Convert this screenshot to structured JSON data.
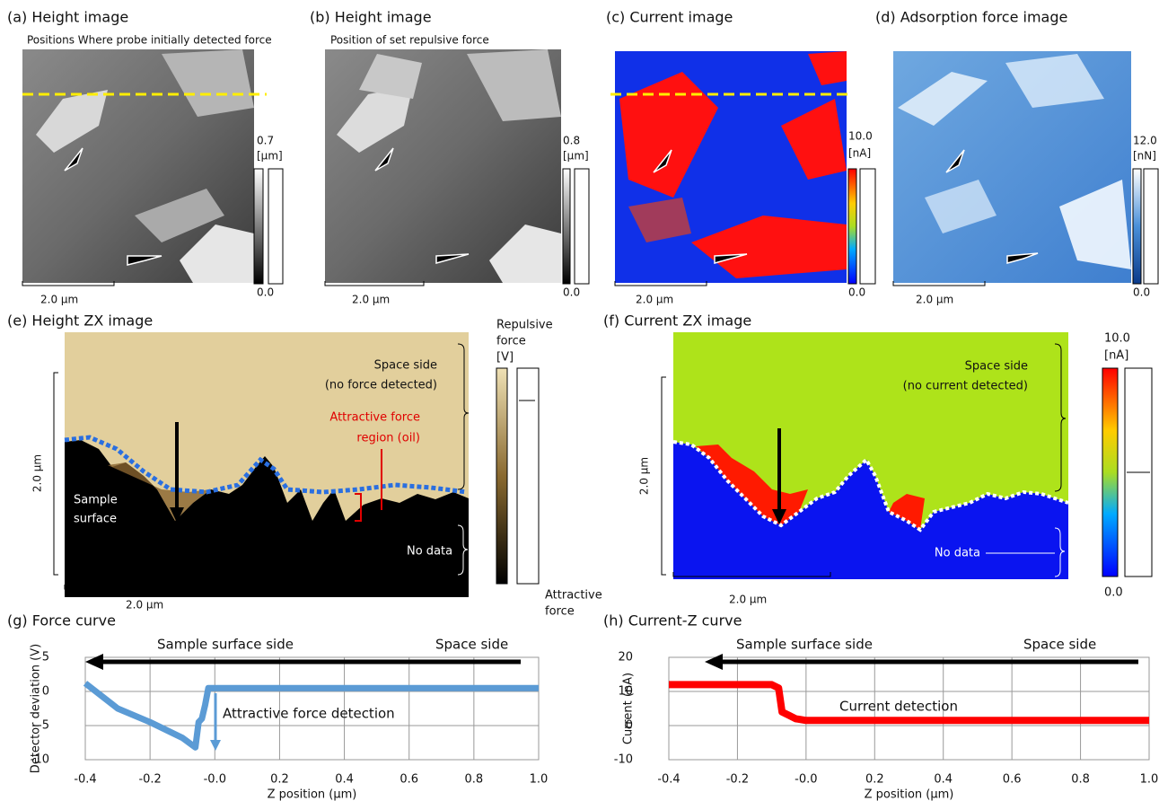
{
  "panels": [
    {
      "label": "(a) Height image",
      "subtitle": "Positions Where probe initially detected force",
      "scale_max": "0.7",
      "unit": "[µm]",
      "scale_min": "0.0",
      "scale_bar": "2.0 µm"
    },
    {
      "label": "(b) Height image",
      "subtitle": "Position of set repulsive force",
      "scale_max": "0.8",
      "unit": "[µm]",
      "scale_min": "0.0",
      "scale_bar": "2.0 µm"
    },
    {
      "label": "(c) Current image",
      "scale_max": "10.0",
      "unit": "[nA]",
      "scale_min": "0.0",
      "scale_bar": "2.0 µm"
    },
    {
      "label": "(d) Adsorption force image",
      "scale_max": "12.0",
      "unit": "[nN]",
      "scale_min": "0.0",
      "scale_bar": "2.0 µm"
    },
    {
      "label": "(e) Height ZX image",
      "scale_top": [
        "Repulsive",
        "force",
        "[V]"
      ],
      "scale_bottom": [
        "Attractive",
        "force"
      ],
      "scale_bar": "2.0 µm",
      "scale_bar_vertical": "2.0 µm",
      "annotations": [
        "Space side",
        "(no force detected)",
        "Attractive force",
        "region (oil)",
        "Sample",
        "surface",
        "No data"
      ]
    },
    {
      "label": "(f) Current ZX image",
      "scale_max": "10.0",
      "unit": "[nA]",
      "scale_min": "0.0",
      "scale_bar": "2.0 µm",
      "scale_bar_vertical": "2.0 µm",
      "annotations": [
        "Space side",
        "(no current detected)",
        "No data"
      ]
    }
  ],
  "chart_data": [
    {
      "type": "line",
      "title": "(g) Force curve",
      "x_label": "Z position (µm)",
      "y_label": "Detector deviation (V)",
      "x": [
        -0.4,
        -0.3,
        -0.2,
        -0.1,
        -0.06,
        -0.05,
        -0.04,
        -0.03,
        -0.02,
        0,
        0.2,
        0.4,
        0.6,
        0.8,
        1.0
      ],
      "values": [
        1.2,
        -2.5,
        -4.5,
        -6.8,
        -8.2,
        -4.5,
        -4,
        -2,
        0.5,
        0.5,
        0.5,
        0.5,
        0.5,
        0.5,
        0.5
      ],
      "color": "#5b9bd5",
      "xlim": [
        -0.4,
        1.0
      ],
      "ylim": [
        -10,
        5
      ],
      "xticks": [
        -0.4,
        -0.2,
        {
          "value": 0,
          "label": "-0.0"
        },
        0.2,
        0.4,
        0.6,
        0.8,
        {
          "value": 1.0,
          "label": "1.0"
        }
      ],
      "yticks": [
        -10,
        -5,
        0,
        5
      ],
      "grid": true,
      "annotations": [
        "Sample surface side",
        "Space side",
        "Attractive force detection"
      ]
    },
    {
      "type": "line",
      "title": "(h) Current-Z curve",
      "x_label": "Z position (µm)",
      "y_label": "Current (nA)",
      "x": [
        -0.4,
        -0.1,
        -0.08,
        -0.07,
        -0.05,
        -0.03,
        0,
        0.2,
        0.4,
        0.6,
        0.8,
        1.0
      ],
      "values": [
        12,
        12,
        11,
        4,
        3,
        2,
        1.5,
        1.5,
        1.5,
        1.5,
        1.5,
        1.5
      ],
      "color": "#ff0000",
      "xlim": [
        -0.4,
        1.0
      ],
      "ylim": [
        -10,
        20
      ],
      "xticks": [
        -0.4,
        -0.2,
        {
          "value": 0,
          "label": "-0.0"
        },
        0.2,
        0.4,
        0.6,
        0.8,
        {
          "value": 1.0,
          "label": "1.0"
        }
      ],
      "yticks": [
        -10,
        0,
        10,
        20
      ],
      "grid": true,
      "annotations": [
        "Sample surface side",
        "Space side",
        "Current detection"
      ]
    }
  ]
}
